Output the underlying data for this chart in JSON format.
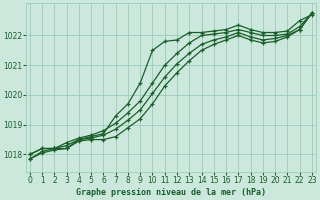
{
  "title": "Graphe pression niveau de la mer (hPa)",
  "bg_color": "#cce8dd",
  "grid_color": "#99ccbb",
  "line_color": "#1a5e2a",
  "x_ticks": [
    0,
    1,
    2,
    3,
    4,
    5,
    6,
    7,
    8,
    9,
    10,
    11,
    12,
    13,
    14,
    15,
    16,
    17,
    18,
    19,
    20,
    21,
    22,
    23
  ],
  "y_ticks": [
    1018,
    1019,
    1020,
    1021,
    1022
  ],
  "ylim": [
    1017.4,
    1023.1
  ],
  "xlim": [
    -0.3,
    23.3
  ],
  "series": [
    [
      1018.0,
      1018.2,
      1018.2,
      1018.2,
      1018.5,
      1018.6,
      1018.7,
      1019.3,
      1019.7,
      1020.4,
      1021.5,
      1021.8,
      1021.85,
      1022.1,
      1022.1,
      1022.15,
      1022.2,
      1022.35,
      1022.2,
      1022.1,
      1022.1,
      1022.15,
      1022.5,
      1022.7
    ],
    [
      1018.0,
      1018.2,
      1018.2,
      1018.4,
      1018.55,
      1018.65,
      1018.8,
      1019.05,
      1019.4,
      1019.8,
      1020.4,
      1021.0,
      1021.4,
      1021.75,
      1022.0,
      1022.05,
      1022.1,
      1022.2,
      1022.1,
      1022.0,
      1022.0,
      1022.05,
      1022.3,
      1022.75
    ],
    [
      1017.85,
      1018.1,
      1018.2,
      1018.3,
      1018.5,
      1018.55,
      1018.65,
      1018.85,
      1019.15,
      1019.5,
      1020.05,
      1020.6,
      1021.05,
      1021.4,
      1021.7,
      1021.85,
      1021.95,
      1022.1,
      1021.95,
      1021.85,
      1021.9,
      1022.0,
      1022.2,
      1022.75
    ],
    [
      1017.85,
      1018.05,
      1018.15,
      1018.2,
      1018.45,
      1018.5,
      1018.5,
      1018.6,
      1018.9,
      1019.2,
      1019.7,
      1020.3,
      1020.75,
      1021.15,
      1021.5,
      1021.7,
      1021.85,
      1022.0,
      1021.85,
      1021.75,
      1021.8,
      1021.95,
      1022.2,
      1022.75
    ]
  ]
}
